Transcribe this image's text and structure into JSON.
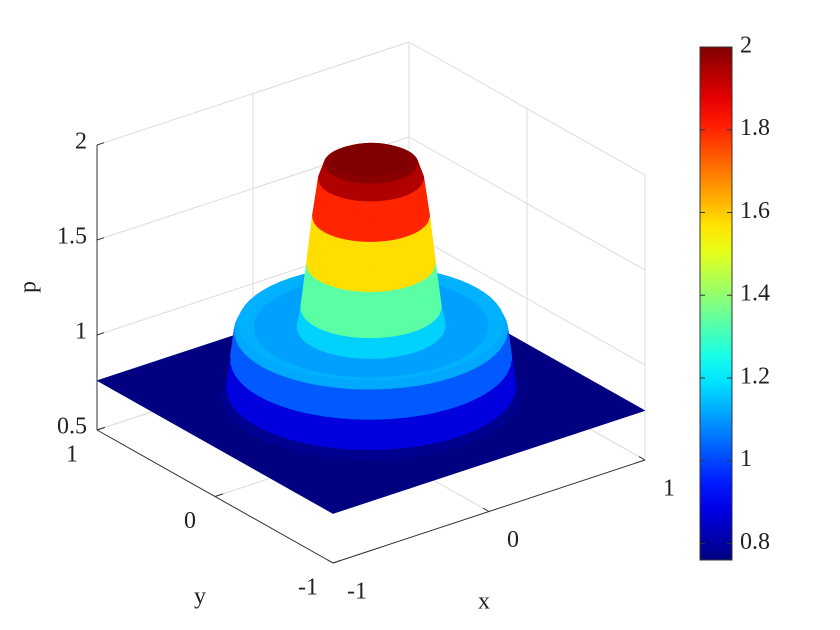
{
  "chart_data": {
    "type": "surface",
    "xlabel": "x",
    "ylabel": "y",
    "zlabel": "p",
    "xlim": [
      -1,
      1
    ],
    "ylim": [
      -1,
      1
    ],
    "zlim": [
      0.5,
      2
    ],
    "xticks": [
      -1,
      0,
      1
    ],
    "yticks": [
      -1,
      0,
      1
    ],
    "zticks": [
      0.5,
      1,
      1.5,
      2
    ],
    "grid": true,
    "colormap": "jet",
    "clim": [
      0.76,
      2
    ],
    "cticks": [
      0.8,
      1,
      1.2,
      1.4,
      1.6,
      1.8,
      2
    ],
    "surface": {
      "r": [
        0,
        0.2,
        0.24,
        0.27,
        0.3,
        0.33,
        0.36,
        0.38,
        0.5,
        0.6,
        0.68,
        0.7,
        0.72,
        0.74,
        0.76
      ],
      "values": [
        2,
        2,
        1.98,
        1.9,
        1.7,
        1.45,
        1.22,
        1.12,
        1.1,
        1.12,
        1.14,
        1.1,
        0.95,
        0.8,
        0.76
      ]
    }
  }
}
